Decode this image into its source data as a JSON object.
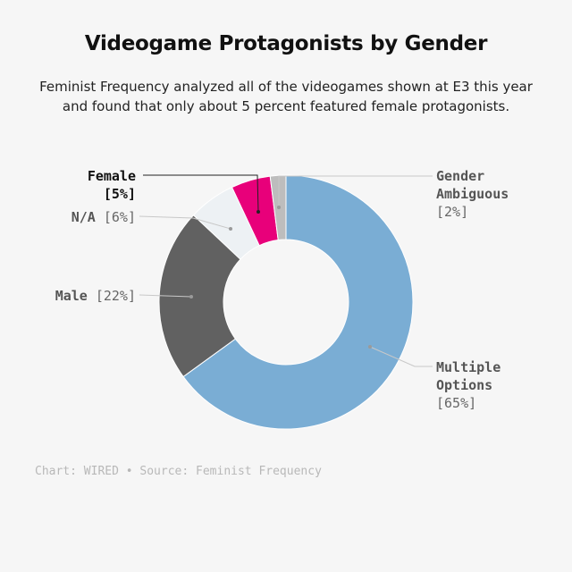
{
  "title": "Videogame Protagonists by Gender",
  "subtitle_lines": [
    "Feminist Frequency analyzed all of the videogames shown at E3 this year",
    "and found that only about 5 percent featured female protagonists."
  ],
  "source": "Chart: WIRED • Source: Feminist Frequency",
  "colors": {
    "multiple": "#7aadd4",
    "male": "#616161",
    "na": "#edf1f4",
    "female": "#e8007a",
    "ambiguous": "#bdbdbd"
  },
  "chart_data": {
    "type": "pie",
    "variant": "donut",
    "start": "12 o'clock, clockwise",
    "slices": [
      {
        "key": "multiple",
        "value": 65,
        "label_lines": [
          "Multiple",
          "Options"
        ],
        "pct": "[65%]"
      },
      {
        "key": "male",
        "value": 22,
        "label_lines": [
          "Male"
        ],
        "pct": "[22%]"
      },
      {
        "key": "na",
        "value": 6,
        "label_lines": [
          "N/A"
        ],
        "pct": "[6%]"
      },
      {
        "key": "female",
        "value": 5,
        "label_lines": [
          "Female"
        ],
        "pct": "[5%]"
      },
      {
        "key": "ambiguous",
        "value": 2,
        "label_lines": [
          "Gender",
          "Ambiguous"
        ],
        "pct": "[2%]"
      }
    ]
  }
}
